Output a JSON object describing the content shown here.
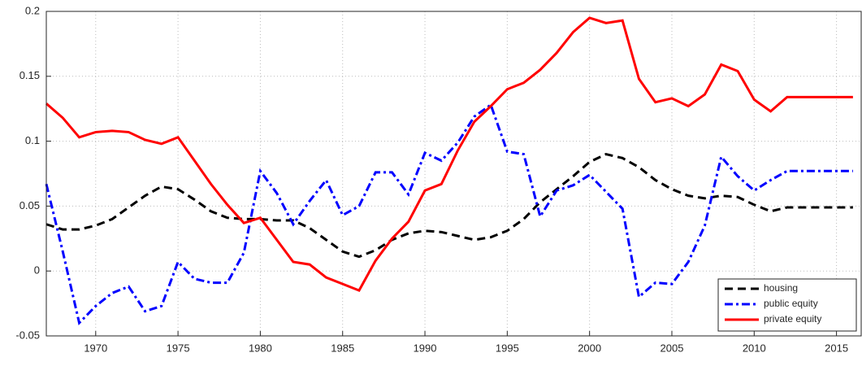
{
  "chart_data": {
    "type": "line",
    "x": [
      1967,
      1968,
      1969,
      1970,
      1971,
      1972,
      1973,
      1974,
      1975,
      1976,
      1977,
      1978,
      1979,
      1980,
      1981,
      1982,
      1983,
      1984,
      1985,
      1986,
      1987,
      1988,
      1989,
      1990,
      1991,
      1992,
      1993,
      1994,
      1995,
      1996,
      1997,
      1998,
      1999,
      2000,
      2001,
      2002,
      2003,
      2004,
      2005,
      2006,
      2007,
      2008,
      2009,
      2010,
      2011,
      2012,
      2013,
      2014,
      2015,
      2016
    ],
    "series": [
      {
        "name": "housing",
        "color": "#000000",
        "dash": "dashed",
        "values": [
          0.036,
          0.032,
          0.032,
          0.035,
          0.04,
          0.049,
          0.058,
          0.065,
          0.063,
          0.055,
          0.046,
          0.041,
          0.04,
          0.04,
          0.039,
          0.039,
          0.033,
          0.024,
          0.015,
          0.011,
          0.016,
          0.024,
          0.029,
          0.031,
          0.03,
          0.027,
          0.024,
          0.026,
          0.031,
          0.04,
          0.053,
          0.063,
          0.073,
          0.084,
          0.09,
          0.087,
          0.08,
          0.07,
          0.063,
          0.058,
          0.056,
          0.058,
          0.057,
          0.051,
          0.046,
          0.049,
          0.049,
          0.049,
          0.049,
          0.049
        ]
      },
      {
        "name": "public equity",
        "color": "#0000ff",
        "dash": "dashdot",
        "values": [
          0.067,
          0.015,
          -0.04,
          -0.027,
          -0.017,
          -0.012,
          -0.031,
          -0.027,
          0.007,
          -0.006,
          -0.009,
          -0.009,
          0.014,
          0.077,
          0.06,
          0.036,
          0.054,
          0.07,
          0.043,
          0.05,
          0.076,
          0.076,
          0.059,
          0.091,
          0.085,
          0.099,
          0.119,
          0.128,
          0.092,
          0.09,
          0.042,
          0.062,
          0.066,
          0.074,
          0.061,
          0.048,
          -0.02,
          -0.009,
          -0.01,
          0.007,
          0.035,
          0.088,
          0.073,
          0.062,
          0.07,
          0.077,
          0.077,
          0.077,
          0.077,
          0.077
        ]
      },
      {
        "name": "private equity",
        "color": "#ff0000",
        "dash": "solid",
        "values": [
          0.129,
          0.118,
          0.103,
          0.107,
          0.108,
          0.107,
          0.101,
          0.098,
          0.103,
          0.085,
          0.067,
          0.051,
          0.037,
          0.041,
          0.024,
          0.007,
          0.005,
          -0.005,
          -0.01,
          -0.015,
          0.008,
          0.025,
          0.038,
          0.062,
          0.067,
          0.093,
          0.115,
          0.127,
          0.14,
          0.145,
          0.155,
          0.168,
          0.184,
          0.195,
          0.191,
          0.193,
          0.148,
          0.13,
          0.133,
          0.127,
          0.136,
          0.159,
          0.154,
          0.132,
          0.123,
          0.134,
          0.134,
          0.134,
          0.134,
          0.134
        ]
      }
    ],
    "xlim": [
      1967,
      2016.5
    ],
    "xticks": [
      1970,
      1975,
      1980,
      1985,
      1990,
      1995,
      2000,
      2005,
      2010,
      2015
    ],
    "ylim": [
      -0.05,
      0.2
    ],
    "yticks": [
      -0.05,
      0,
      0.05,
      0.1,
      0.15,
      0.2
    ],
    "grid": true,
    "legend": "lower right"
  }
}
